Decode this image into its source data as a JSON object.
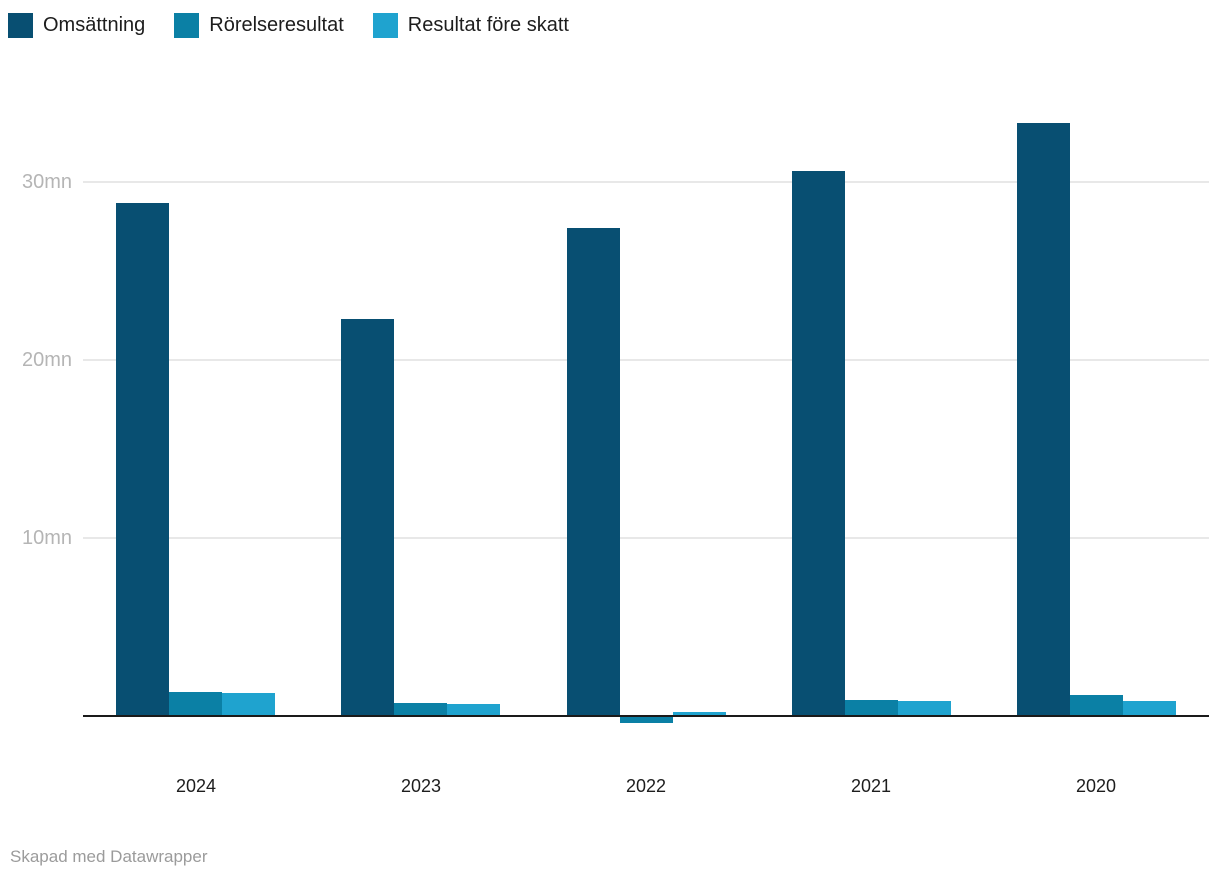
{
  "chart_data": {
    "type": "bar",
    "orientation": "vertical-grouped",
    "categories": [
      "2024",
      "2023",
      "2022",
      "2021",
      "2020"
    ],
    "series": [
      {
        "name": "Omsättning",
        "color": "#084f72",
        "values": [
          28.8,
          22.3,
          27.4,
          30.6,
          33.3
        ]
      },
      {
        "name": "Rörelseresultat",
        "color": "#0b80a5",
        "values": [
          1.35,
          0.75,
          -0.4,
          0.9,
          1.2
        ]
      },
      {
        "name": "Resultat före skatt",
        "color": "#1fa3cf",
        "values": [
          1.3,
          0.65,
          0.2,
          0.85,
          0.85
        ]
      }
    ],
    "unit": "mn",
    "yticks": [
      {
        "value": 10,
        "label": "10mn"
      },
      {
        "value": 20,
        "label": "20mn"
      },
      {
        "value": 30,
        "label": "30mn"
      }
    ],
    "ylim": [
      -0.5,
      34
    ],
    "grid": "horizontal",
    "legend_position": "top-left",
    "baseline_color": "#1a1a1a",
    "gridline_color": "#e8e8e8"
  },
  "footer": {
    "credit": "Skapad med Datawrapper"
  }
}
